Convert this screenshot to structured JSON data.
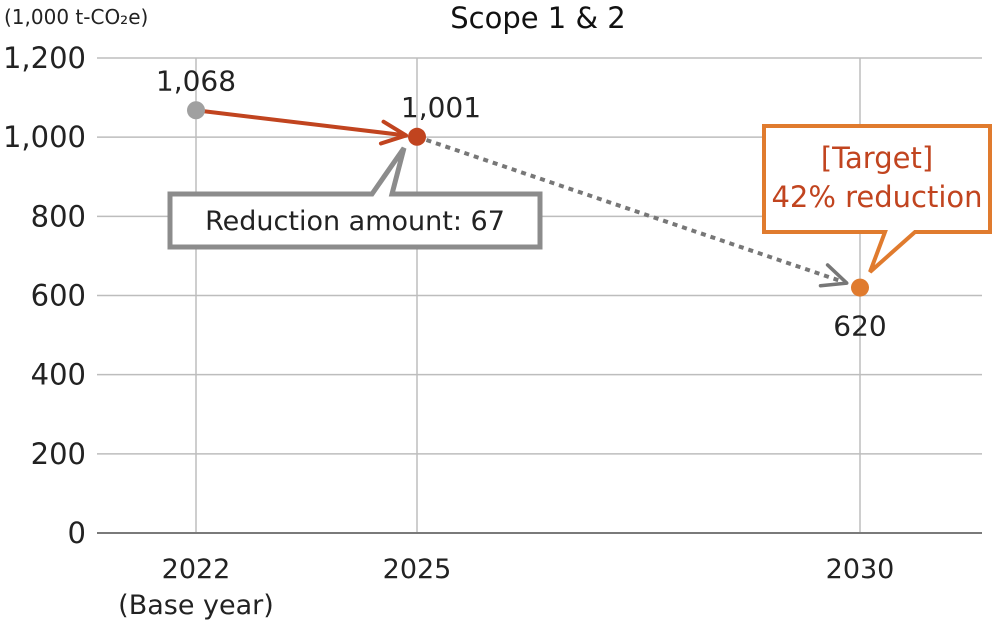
{
  "chart_data": {
    "type": "line",
    "title": "Scope 1 & 2",
    "unit_label": "(1,000 t-CO₂e)",
    "ylim": [
      0,
      1200
    ],
    "y_ticks": [
      "0",
      "200",
      "400",
      "600",
      "800",
      "1,000",
      "1,200"
    ],
    "y_tick_values": [
      0,
      200,
      400,
      600,
      800,
      1000,
      1200
    ],
    "x_ticks": [
      {
        "year": 2022,
        "label": "2022",
        "sublabel": "(Base year)"
      },
      {
        "year": 2025,
        "label": "2025",
        "sublabel": ""
      },
      {
        "year": 2030,
        "label": "2030",
        "sublabel": ""
      }
    ],
    "points": [
      {
        "x": 2022,
        "y": 1068,
        "label": "1,068",
        "color": "#a0a0a0"
      },
      {
        "x": 2025,
        "y": 1001,
        "label": "1,001",
        "color": "#c1441f"
      },
      {
        "x": 2030,
        "y": 620,
        "label": "620",
        "color": "#e07b2e"
      }
    ],
    "segments": [
      {
        "from": 2022,
        "to": 2025,
        "style": "solid",
        "color": "#c1441f"
      },
      {
        "from": 2025,
        "to": 2030,
        "style": "dotted",
        "color": "#777777"
      }
    ],
    "annotations": {
      "reduction": "Reduction amount: 67",
      "target_line1": "[Target]",
      "target_line2": "42% reduction"
    },
    "grid": true
  }
}
